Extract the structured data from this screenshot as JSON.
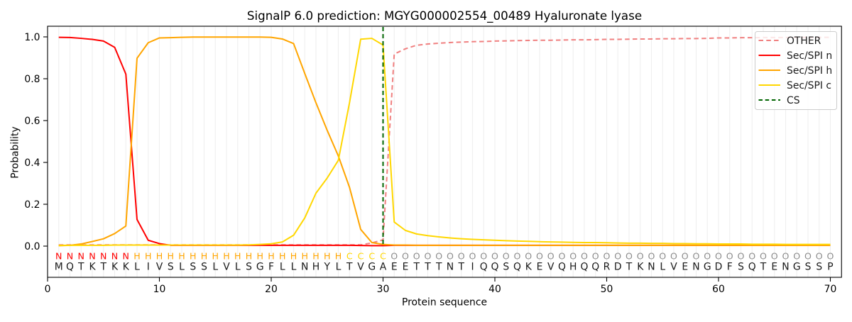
{
  "chart_data": {
    "type": "line",
    "title": "SignalP 6.0 prediction: MGYG000002554_00489 Hyaluronate lyase",
    "xlabel": "Protein sequence",
    "ylabel": "Probability",
    "xlim": [
      0,
      71
    ],
    "ylim": [
      -0.15,
      1.05
    ],
    "xticks": [
      0,
      10,
      20,
      30,
      40,
      50,
      60,
      70
    ],
    "yticks": [
      0.0,
      0.2,
      0.4,
      0.6,
      0.8,
      1.0
    ],
    "ytick_labels": [
      "0.0",
      "0.2",
      "0.4",
      "0.6",
      "0.8",
      "1.0"
    ],
    "grid": {
      "axis": "x",
      "color": "#efefef",
      "positions": "every residue 1-70"
    },
    "legend_position": "upper right",
    "x": "residue positions 1-70",
    "series": [
      {
        "name": "OTHER",
        "color": "#f08080",
        "style": "dashed",
        "values": [
          0.006,
          0.006,
          0.006,
          0.006,
          0.006,
          0.006,
          0.006,
          0.006,
          0.006,
          0.006,
          0.006,
          0.006,
          0.006,
          0.006,
          0.006,
          0.006,
          0.006,
          0.006,
          0.006,
          0.006,
          0.006,
          0.006,
          0.006,
          0.006,
          0.006,
          0.006,
          0.006,
          0.006,
          0.015,
          0.03,
          0.918,
          0.943,
          0.96,
          0.966,
          0.97,
          0.973,
          0.975,
          0.977,
          0.978,
          0.98,
          0.981,
          0.982,
          0.983,
          0.984,
          0.984,
          0.985,
          0.986,
          0.986,
          0.987,
          0.988,
          0.988,
          0.989,
          0.99,
          0.99,
          0.991,
          0.991,
          0.992,
          0.992,
          0.993,
          0.995,
          0.995,
          0.996,
          0.996,
          0.997,
          0.997,
          0.997,
          0.998,
          0.998,
          0.998,
          0.998
        ]
      },
      {
        "name": "Sec/SPI n",
        "color": "#ff0000",
        "style": "solid",
        "values": [
          0.998,
          0.997,
          0.993,
          0.988,
          0.98,
          0.95,
          0.822,
          0.127,
          0.028,
          0.012,
          0.004,
          0.004,
          0.004,
          0.004,
          0.004,
          0.004,
          0.004,
          0.004,
          0.004,
          0.004,
          0.004,
          0.004,
          0.004,
          0.004,
          0.004,
          0.004,
          0.004,
          0.003,
          0.002,
          0.002,
          0.004,
          0.004,
          0.004,
          0.004,
          0.004,
          0.004,
          0.004,
          0.004,
          0.004,
          0.004,
          0.004,
          0.004,
          0.004,
          0.004,
          0.004,
          0.004,
          0.004,
          0.004,
          0.004,
          0.004,
          0.004,
          0.004,
          0.004,
          0.004,
          0.004,
          0.004,
          0.004,
          0.004,
          0.004,
          0.004,
          0.004,
          0.004,
          0.004,
          0.004,
          0.004,
          0.004,
          0.004,
          0.004,
          0.004,
          0.004
        ]
      },
      {
        "name": "Sec/SPI h",
        "color": "#ffa500",
        "style": "solid",
        "values": [
          0.002,
          0.004,
          0.01,
          0.022,
          0.035,
          0.06,
          0.096,
          0.898,
          0.972,
          0.995,
          0.996,
          0.998,
          0.999,
          0.999,
          0.999,
          0.999,
          0.999,
          0.999,
          0.999,
          0.998,
          0.99,
          0.968,
          0.825,
          0.685,
          0.554,
          0.431,
          0.281,
          0.08,
          0.017,
          0.008,
          0.005,
          0.005,
          0.004,
          0.004,
          0.004,
          0.004,
          0.004,
          0.004,
          0.004,
          0.004,
          0.004,
          0.004,
          0.004,
          0.004,
          0.004,
          0.004,
          0.004,
          0.004,
          0.004,
          0.004,
          0.004,
          0.004,
          0.004,
          0.004,
          0.004,
          0.004,
          0.004,
          0.004,
          0.004,
          0.004,
          0.004,
          0.004,
          0.004,
          0.004,
          0.004,
          0.004,
          0.004,
          0.004,
          0.004,
          0.004
        ]
      },
      {
        "name": "Sec/SPI c",
        "color": "#ffd700",
        "style": "solid",
        "values": [
          0.004,
          0.004,
          0.004,
          0.004,
          0.004,
          0.005,
          0.005,
          0.005,
          0.005,
          0.005,
          0.005,
          0.005,
          0.005,
          0.005,
          0.005,
          0.005,
          0.005,
          0.006,
          0.008,
          0.011,
          0.02,
          0.052,
          0.135,
          0.253,
          0.325,
          0.41,
          0.685,
          0.989,
          0.993,
          0.961,
          0.115,
          0.075,
          0.058,
          0.05,
          0.044,
          0.039,
          0.035,
          0.032,
          0.03,
          0.028,
          0.026,
          0.024,
          0.023,
          0.021,
          0.02,
          0.019,
          0.018,
          0.017,
          0.017,
          0.016,
          0.015,
          0.014,
          0.014,
          0.013,
          0.013,
          0.012,
          0.012,
          0.011,
          0.011,
          0.01,
          0.01,
          0.01,
          0.009,
          0.009,
          0.009,
          0.008,
          0.008,
          0.008,
          0.008,
          0.008
        ]
      }
    ],
    "cs": {
      "name": "CS",
      "color": "#006400",
      "style": "dashed",
      "position": 30
    },
    "sequence": "MQTKTKKLIVSLSSLVLSGFLLNHYLTVGAEETTTNTIQQSQKEVQHQQRDTKNLVENGDFSQTENGSSP",
    "region_labels": "NNNNNNNHHHHHHHHHHHHHHHHHHHCCCCOOOOOOOOOOOOOOOOOOOOOOOOOOOOOOOOOOOOOOOO",
    "label_colors": {
      "N": "#ff0000",
      "H": "#ffa500",
      "C": "#ffd700",
      "O": "#8c8c8c"
    },
    "sequence_color": "#1a1a1a"
  }
}
